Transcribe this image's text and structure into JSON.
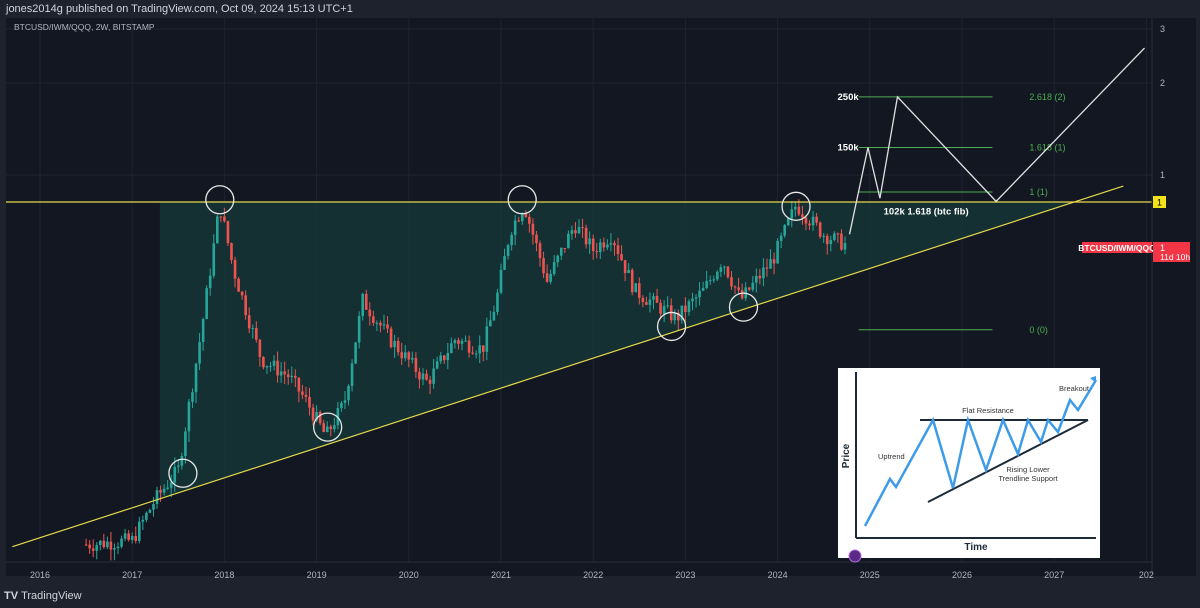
{
  "header": {
    "published": "jones2014g published on TradingView.com, Oct 09, 2024 15:13 UTC+1",
    "symbol": "BTCUSD/IWM/QQQ, 2W, BITSTAMP"
  },
  "footer": {
    "logo": "TradingView"
  },
  "colors": {
    "background": "#131722",
    "up": "#26a69a",
    "down": "#ef5350",
    "resistance": "#e6d94a",
    "fib": "#4caf50",
    "projection": "#e0e0e0",
    "triangle_fill": "#153a3a",
    "price_label": "#f23645"
  },
  "chart_data": {
    "type": "candlestick",
    "title": "BTCUSD/IWM/QQQ, 2W, BITSTAMP",
    "y_scale": "log",
    "ylim": [
      0.05,
      3.3
    ],
    "y_ticks": [
      "1",
      "2",
      "3"
    ],
    "x_ticks": [
      "2016",
      "2017",
      "2018",
      "2019",
      "2020",
      "2021",
      "2022",
      "2023",
      "2024",
      "2025",
      "2026",
      "2027",
      "202"
    ],
    "xlim": [
      2015.65,
      2028.0
    ],
    "price_path": [
      [
        2016.5,
        0.062
      ],
      [
        2017.0,
        0.064
      ],
      [
        2017.25,
        0.087
      ],
      [
        2017.5,
        0.109
      ],
      [
        2017.75,
        0.31
      ],
      [
        2017.95,
        0.8
      ],
      [
        2018.1,
        0.49
      ],
      [
        2018.4,
        0.25
      ],
      [
        2018.7,
        0.22
      ],
      [
        2018.9,
        0.18
      ],
      [
        2019.1,
        0.14
      ],
      [
        2019.3,
        0.18
      ],
      [
        2019.5,
        0.39
      ],
      [
        2019.8,
        0.29
      ],
      [
        2020.2,
        0.21
      ],
      [
        2020.5,
        0.29
      ],
      [
        2020.8,
        0.27
      ],
      [
        2020.95,
        0.39
      ],
      [
        2021.1,
        0.66
      ],
      [
        2021.25,
        0.8
      ],
      [
        2021.5,
        0.45
      ],
      [
        2021.8,
        0.69
      ],
      [
        2022.0,
        0.57
      ],
      [
        2022.2,
        0.64
      ],
      [
        2022.45,
        0.42
      ],
      [
        2022.9,
        0.34
      ],
      [
        2023.2,
        0.42
      ],
      [
        2023.4,
        0.53
      ],
      [
        2023.6,
        0.39
      ],
      [
        2023.95,
        0.53
      ],
      [
        2024.2,
        0.8
      ],
      [
        2024.5,
        0.64
      ],
      [
        2024.75,
        0.59
      ]
    ],
    "resistance_level": 0.816,
    "resistance_label": "1",
    "trendline": [
      [
        2015.7,
        0.061
      ],
      [
        2027.75,
        0.92
      ]
    ],
    "triangle_start": 2017.3,
    "fib_levels": [
      {
        "label": "2.618 (2)",
        "value": 1.8
      },
      {
        "label": "1.618 (1)",
        "value": 1.23
      },
      {
        "label": "1 (1)",
        "value": 0.88
      },
      {
        "label": "0 (0)",
        "value": 0.312
      }
    ],
    "fib_range": [
      2024.88,
      2026.33
    ],
    "projection": [
      [
        2024.78,
        0.64
      ],
      [
        2024.98,
        1.23
      ],
      [
        2025.11,
        0.84
      ],
      [
        2025.3,
        1.8
      ],
      [
        2026.37,
        0.82
      ],
      [
        2027.98,
        2.6
      ]
    ],
    "projection_labels": [
      {
        "text": "250k",
        "at": [
          2024.65,
          1.8
        ]
      },
      {
        "text": "150k",
        "at": [
          2024.65,
          1.23
        ]
      },
      {
        "text": "102k 1.618 (btc fib)",
        "at": [
          2025.15,
          0.76
        ]
      }
    ],
    "circled_touches": [
      [
        2017.95,
        0.83
      ],
      [
        2017.55,
        0.106
      ],
      [
        2019.12,
        0.15
      ],
      [
        2021.23,
        0.83
      ],
      [
        2022.85,
        0.32
      ],
      [
        2023.63,
        0.37
      ],
      [
        2024.2,
        0.79
      ]
    ],
    "current_price": {
      "symbol": "BTCUSD/IWM/QQQ",
      "value": "1",
      "countdown": "11d 10h"
    }
  },
  "inset": {
    "ylabel": "Price",
    "xlabel": "Time",
    "uptrend": "Uptrend",
    "flat": "Flat Resistance",
    "support1": "Rising Lower",
    "support2": "Trendline Support",
    "breakout": "Breakout"
  }
}
